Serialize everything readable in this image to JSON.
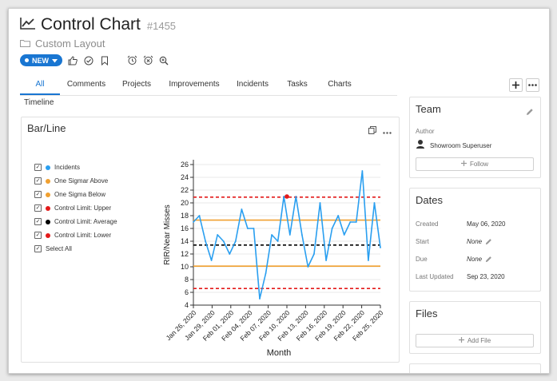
{
  "header": {
    "title": "Control Chart",
    "record_id": "#1455",
    "layout": "Custom Layout",
    "status_label": "NEW"
  },
  "tabs": [
    "All",
    "Comments",
    "Projects",
    "Improvements",
    "Incidents",
    "Tasks",
    "Charts"
  ],
  "timeline_label": "Timeline",
  "chart_card": {
    "title": "Bar/Line"
  },
  "legend": [
    {
      "label": "Incidents",
      "color": "#2a9ff0"
    },
    {
      "label": "One Sigmar Above",
      "color": "#f0a030"
    },
    {
      "label": "One Sigma Below",
      "color": "#f0a030"
    },
    {
      "label": "Control Limit: Upper",
      "color": "#e31a1a"
    },
    {
      "label": "Control Limit: Average",
      "color": "#000000"
    },
    {
      "label": "Control Limit: Lower",
      "color": "#e31a1a"
    },
    {
      "label": "Select All",
      "color": ""
    }
  ],
  "chart_data": {
    "type": "line",
    "xlabel": "Month",
    "ylabel": "RIR/Near Misses",
    "ylim": [
      4,
      26
    ],
    "yticks": [
      4,
      6,
      8,
      10,
      12,
      14,
      16,
      18,
      20,
      22,
      24,
      26
    ],
    "x_tick_labels": [
      "Jan 26, 2020",
      "Jan 29, 2020",
      "Feb 01, 2020",
      "Feb 04, 2020",
      "Feb 07, 2020",
      "Feb 10, 2020",
      "Feb 13, 2020",
      "Feb 16, 2020",
      "Feb 19, 2020",
      "Feb 22, 2020",
      "Feb 25, 2020"
    ],
    "x_first": "Jan 26, 2020",
    "x_last": "Feb 25, 2020",
    "series": [
      {
        "name": "Incidents",
        "color": "#2a9ff0",
        "values": [
          17,
          18,
          14,
          11,
          15,
          14,
          12,
          14,
          19,
          16,
          16,
          5,
          9,
          15,
          14,
          21,
          15,
          21,
          15,
          10,
          12,
          20,
          11,
          16,
          18,
          15,
          17,
          17,
          25,
          11,
          20,
          13
        ]
      },
      {
        "name": "One Sigmar Above",
        "color": "#f0a030",
        "constant": 17.3
      },
      {
        "name": "One Sigma Below",
        "color": "#f0a030",
        "constant": 10.1
      },
      {
        "name": "Control Limit: Upper",
        "color": "#e31a1a",
        "constant": 20.9
      },
      {
        "name": "Control Limit: Average",
        "color": "#000000",
        "constant": 13.4
      },
      {
        "name": "Control Limit: Lower",
        "color": "#e31a1a",
        "constant": 6.6
      }
    ],
    "highlight_point": {
      "date": "Feb 10, 2020",
      "value": 21
    },
    "grid": true,
    "legend_position": "left"
  },
  "team": {
    "title": "Team",
    "author_label": "Author",
    "author_name": "Showroom Superuser",
    "follow_label": "Follow"
  },
  "dates": {
    "title": "Dates",
    "rows": [
      {
        "label": "Created",
        "value": "May 06, 2020"
      },
      {
        "label": "Start",
        "value": "None"
      },
      {
        "label": "Due",
        "value": "None"
      },
      {
        "label": "Last Updated",
        "value": "Sep 23, 2020"
      }
    ]
  },
  "files": {
    "title": "Files",
    "add_label": "Add File"
  }
}
